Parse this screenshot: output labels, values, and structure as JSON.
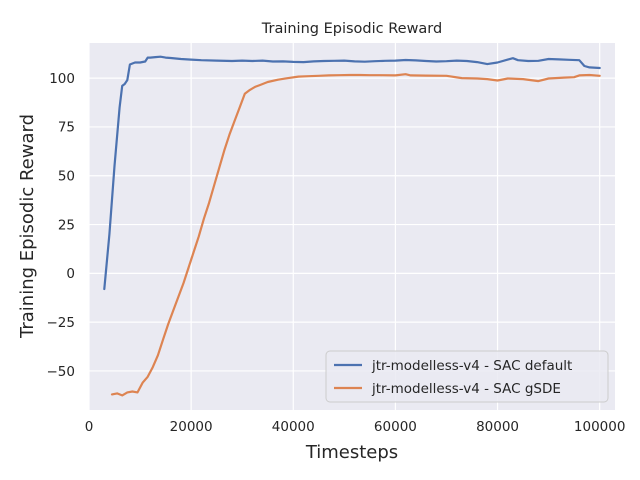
{
  "chart_data": {
    "type": "line",
    "title": "Training Episodic Reward",
    "xlabel": "Timesteps",
    "ylabel": "Training Episodic Reward",
    "xlim": [
      0,
      103000
    ],
    "ylim": [
      -70,
      118
    ],
    "grid": true,
    "legend_position": "lower-right",
    "x_ticks": [
      0,
      20000,
      40000,
      60000,
      80000,
      100000
    ],
    "x_tick_labels": [
      "0",
      "20000",
      "40000",
      "60000",
      "80000",
      "100000"
    ],
    "y_ticks": [
      -50,
      -25,
      0,
      25,
      50,
      75,
      100
    ],
    "y_tick_labels": [
      "−50",
      "−25",
      "0",
      "25",
      "50",
      "75",
      "100"
    ],
    "series": [
      {
        "name": "jtr-modelless-v4 - SAC default",
        "color": "#4c72b0",
        "x": [
          3000,
          4000,
          5000,
          6000,
          6500,
          7000,
          7500,
          8000,
          8500,
          9000,
          10000,
          11000,
          11500,
          12000,
          13000,
          14000,
          15000,
          16000,
          18000,
          20000,
          22000,
          25000,
          28000,
          30000,
          32000,
          34000,
          36000,
          38000,
          40000,
          42000,
          44000,
          46000,
          48000,
          50000,
          52000,
          54000,
          56000,
          58000,
          60000,
          62000,
          64000,
          66000,
          68000,
          70000,
          72000,
          74000,
          76000,
          78000,
          80000,
          82000,
          83000,
          84000,
          86000,
          88000,
          90000,
          92000,
          94000,
          96000,
          97000,
          98000,
          100000
        ],
        "values": [
          -8,
          20,
          55,
          85,
          96,
          97,
          99,
          107,
          107.5,
          108,
          108,
          108.5,
          110.5,
          110.5,
          110.8,
          111,
          110.5,
          110.3,
          109.8,
          109.5,
          109.2,
          109,
          108.8,
          109,
          108.8,
          109,
          108.5,
          108.6,
          108.3,
          108.2,
          108.6,
          108.8,
          108.9,
          109,
          108.6,
          108.4,
          108.7,
          108.9,
          109,
          109.3,
          109.1,
          108.8,
          108.5,
          108.7,
          109,
          108.8,
          108.2,
          107.2,
          108,
          109.5,
          110.2,
          109.2,
          108.8,
          108.9,
          109.8,
          109.6,
          109.4,
          109.2,
          106.2,
          105.5,
          105.2
        ]
      },
      {
        "name": "jtr-modelless-v4 - SAC gSDE",
        "color": "#dd8452",
        "x": [
          4500,
          5500,
          6500,
          7500,
          8500,
          9500,
          10500,
          11500,
          12500,
          13500,
          14500,
          15500,
          16500,
          17500,
          18500,
          19500,
          20500,
          21500,
          22500,
          23500,
          24500,
          25500,
          26500,
          27500,
          28500,
          29500,
          30500,
          31500,
          32500,
          33500,
          35000,
          37000,
          39000,
          41000,
          43000,
          45000,
          47000,
          49000,
          51000,
          53000,
          55000,
          57000,
          60000,
          62000,
          63000,
          66000,
          70000,
          73000,
          76000,
          78000,
          80000,
          82000,
          85000,
          88000,
          90000,
          93000,
          95000,
          96000,
          98000,
          100000
        ],
        "values": [
          -62,
          -61.5,
          -62.5,
          -61,
          -60.5,
          -61,
          -56,
          -53,
          -48,
          -42,
          -34,
          -26,
          -19,
          -12,
          -5,
          3,
          11,
          19,
          28,
          36,
          45,
          54,
          63,
          71,
          78,
          85,
          92,
          94,
          95.5,
          96.5,
          98,
          99.2,
          100,
          100.8,
          101,
          101.2,
          101.4,
          101.5,
          101.6,
          101.6,
          101.5,
          101.5,
          101.4,
          102,
          101.4,
          101.3,
          101.2,
          100,
          99.8,
          99.5,
          98.8,
          99.8,
          99.5,
          98.5,
          99.8,
          100.3,
          100.5,
          101.4,
          101.6,
          101.2
        ]
      }
    ]
  }
}
